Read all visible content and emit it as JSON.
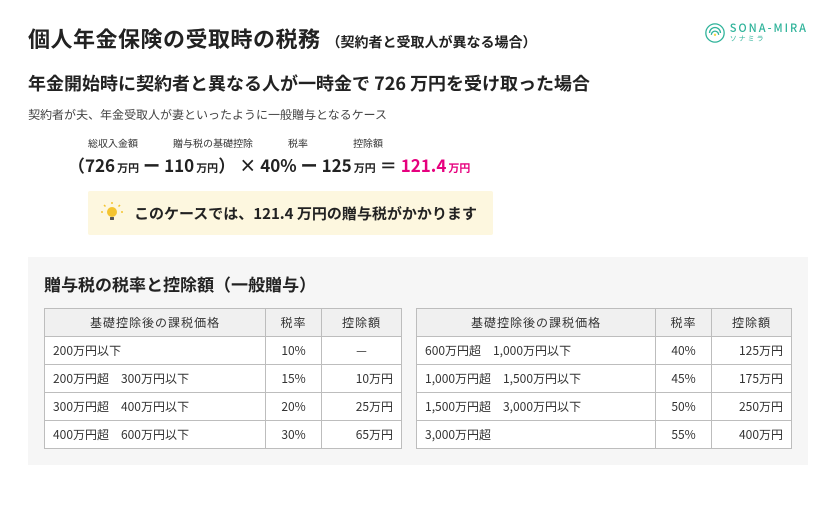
{
  "header": {
    "title_main": "個人年金保険の受取時の税務",
    "title_sub": "（契約者と受取人が異なる場合）",
    "logo_en": "SONA-MIRA",
    "logo_jp": "ソナミラ"
  },
  "subheading": "年金開始時に契約者と異なる人が一時金で 726 万円を受け取った場合",
  "case_note": "契約者が夫、年金受取人が妻といったように一般贈与となるケース",
  "formula": {
    "label_total": "総収入金額",
    "label_basic_ded": "贈与税の基礎控除",
    "label_rate": "税率",
    "label_ded": "控除額",
    "open": "（",
    "total": "726",
    "unit": "万円",
    "minus": "ー",
    "basic_ded": "110",
    "close": "）",
    "times": "×",
    "rate": "40%",
    "ded": "125",
    "eq": "＝",
    "result": "121.4"
  },
  "callout": "このケースでは、121.4 万円の贈与税がかかります",
  "section_title": "贈与税の税率と控除額（一般贈与）",
  "table": {
    "col_range": "基礎控除後の課税価格",
    "col_rate": "税率",
    "col_ded": "控除額",
    "left": [
      {
        "range": "200万円以下",
        "rate": "10%",
        "ded": "—"
      },
      {
        "range": "200万円超　300万円以下",
        "rate": "15%",
        "ded": "10万円"
      },
      {
        "range": "300万円超　400万円以下",
        "rate": "20%",
        "ded": "25万円"
      },
      {
        "range": "400万円超　600万円以下",
        "rate": "30%",
        "ded": "65万円"
      }
    ],
    "right": [
      {
        "range": "600万円超　1,000万円以下",
        "rate": "40%",
        "ded": "125万円"
      },
      {
        "range": "1,000万円超　1,500万円以下",
        "rate": "45%",
        "ded": "175万円"
      },
      {
        "range": "1,500万円超　3,000万円以下",
        "rate": "50%",
        "ded": "250万円"
      },
      {
        "range": "3,000万円超",
        "rate": "55%",
        "ded": "400万円"
      }
    ]
  },
  "colors": {
    "accent": "#e6007e",
    "teal": "#2fb39a",
    "callout_bg": "#fdf7df",
    "section_bg": "#f6f6f6",
    "border": "#bdbdbd"
  }
}
